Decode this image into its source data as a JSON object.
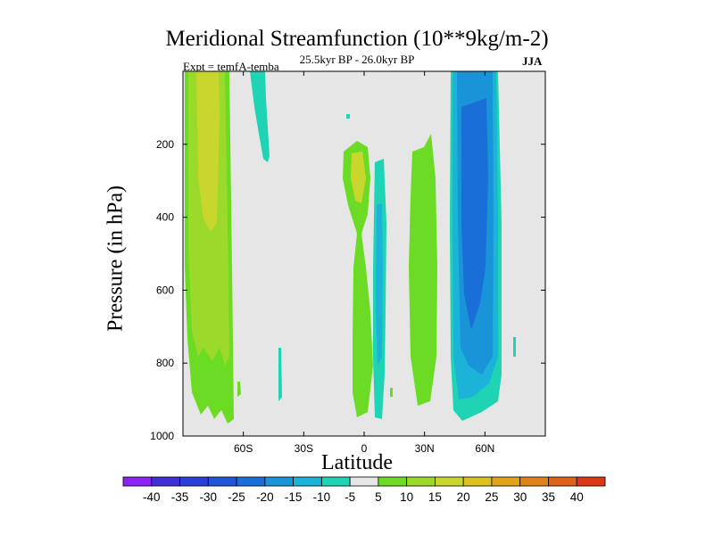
{
  "chart_data": {
    "type": "contour",
    "title": "Meridional Streamfunction (10**9kg/m-2)",
    "subtitle": "25.5kyr BP - 26.0kyr BP",
    "experiment": "Expt = temfA-temba",
    "season": "JJA",
    "xlabel": "Latitude",
    "ylabel": "Pressure (in hPa)",
    "xlim": [
      -90,
      90
    ],
    "ylim": [
      1000,
      0
    ],
    "x_ticks": [
      {
        "value": -60,
        "label": "60S"
      },
      {
        "value": -30,
        "label": "30S"
      },
      {
        "value": 0,
        "label": "0"
      },
      {
        "value": 30,
        "label": "30N"
      },
      {
        "value": 60,
        "label": "60N"
      }
    ],
    "y_ticks": [
      200,
      400,
      600,
      800,
      1000
    ],
    "colorbar": {
      "labels": [
        "-40",
        "-35",
        "-30",
        "-25",
        "-20",
        "-15",
        "-10",
        "-5",
        "5",
        "10",
        "15",
        "20",
        "25",
        "30",
        "35",
        "40"
      ],
      "colors": [
        "#8c22f5",
        "#3f2fd6",
        "#2a3fd8",
        "#1f55d8",
        "#1a6ed8",
        "#1994d8",
        "#1bb3d8",
        "#1fd4b4",
        "#e6e6e6",
        "#6cdb24",
        "#9bd92a",
        "#c8d62e",
        "#ddc21e",
        "#e2a21a",
        "#e0821a",
        "#de621a",
        "#dc3614"
      ]
    },
    "regions": [
      {
        "name": "sh-polar-positive",
        "value": 10,
        "lat_range": [
          -88,
          -66
        ],
        "p_range": [
          0,
          960
        ]
      },
      {
        "name": "sh-polar-core",
        "value": 15,
        "lat_range": [
          -83,
          -72
        ],
        "p_range": [
          0,
          440
        ]
      },
      {
        "name": "sh-midlat-negative",
        "value": -5,
        "lat_range": [
          -55,
          -50
        ],
        "p_range": [
          0,
          250
        ]
      },
      {
        "name": "equatorial-positive",
        "value": 10,
        "lat_range": [
          -9,
          5
        ],
        "p_range": [
          170,
          950
        ]
      },
      {
        "name": "equatorial-core",
        "value": 15,
        "lat_range": [
          -5,
          2
        ],
        "p_range": [
          230,
          330
        ]
      },
      {
        "name": "equatorial-negative",
        "value": -10,
        "lat_range": [
          5,
          11
        ],
        "p_range": [
          240,
          960
        ]
      },
      {
        "name": "nh-subtropic-positive",
        "value": 10,
        "lat_range": [
          23,
          34
        ],
        "p_range": [
          160,
          930
        ]
      },
      {
        "name": "nh-midlat-negative",
        "value": -15,
        "lat_range": [
          45,
          75
        ],
        "p_range": [
          0,
          960
        ]
      },
      {
        "name": "nh-midlat-core",
        "value": -20,
        "lat_range": [
          50,
          67
        ],
        "p_range": [
          0,
          760
        ]
      }
    ]
  }
}
